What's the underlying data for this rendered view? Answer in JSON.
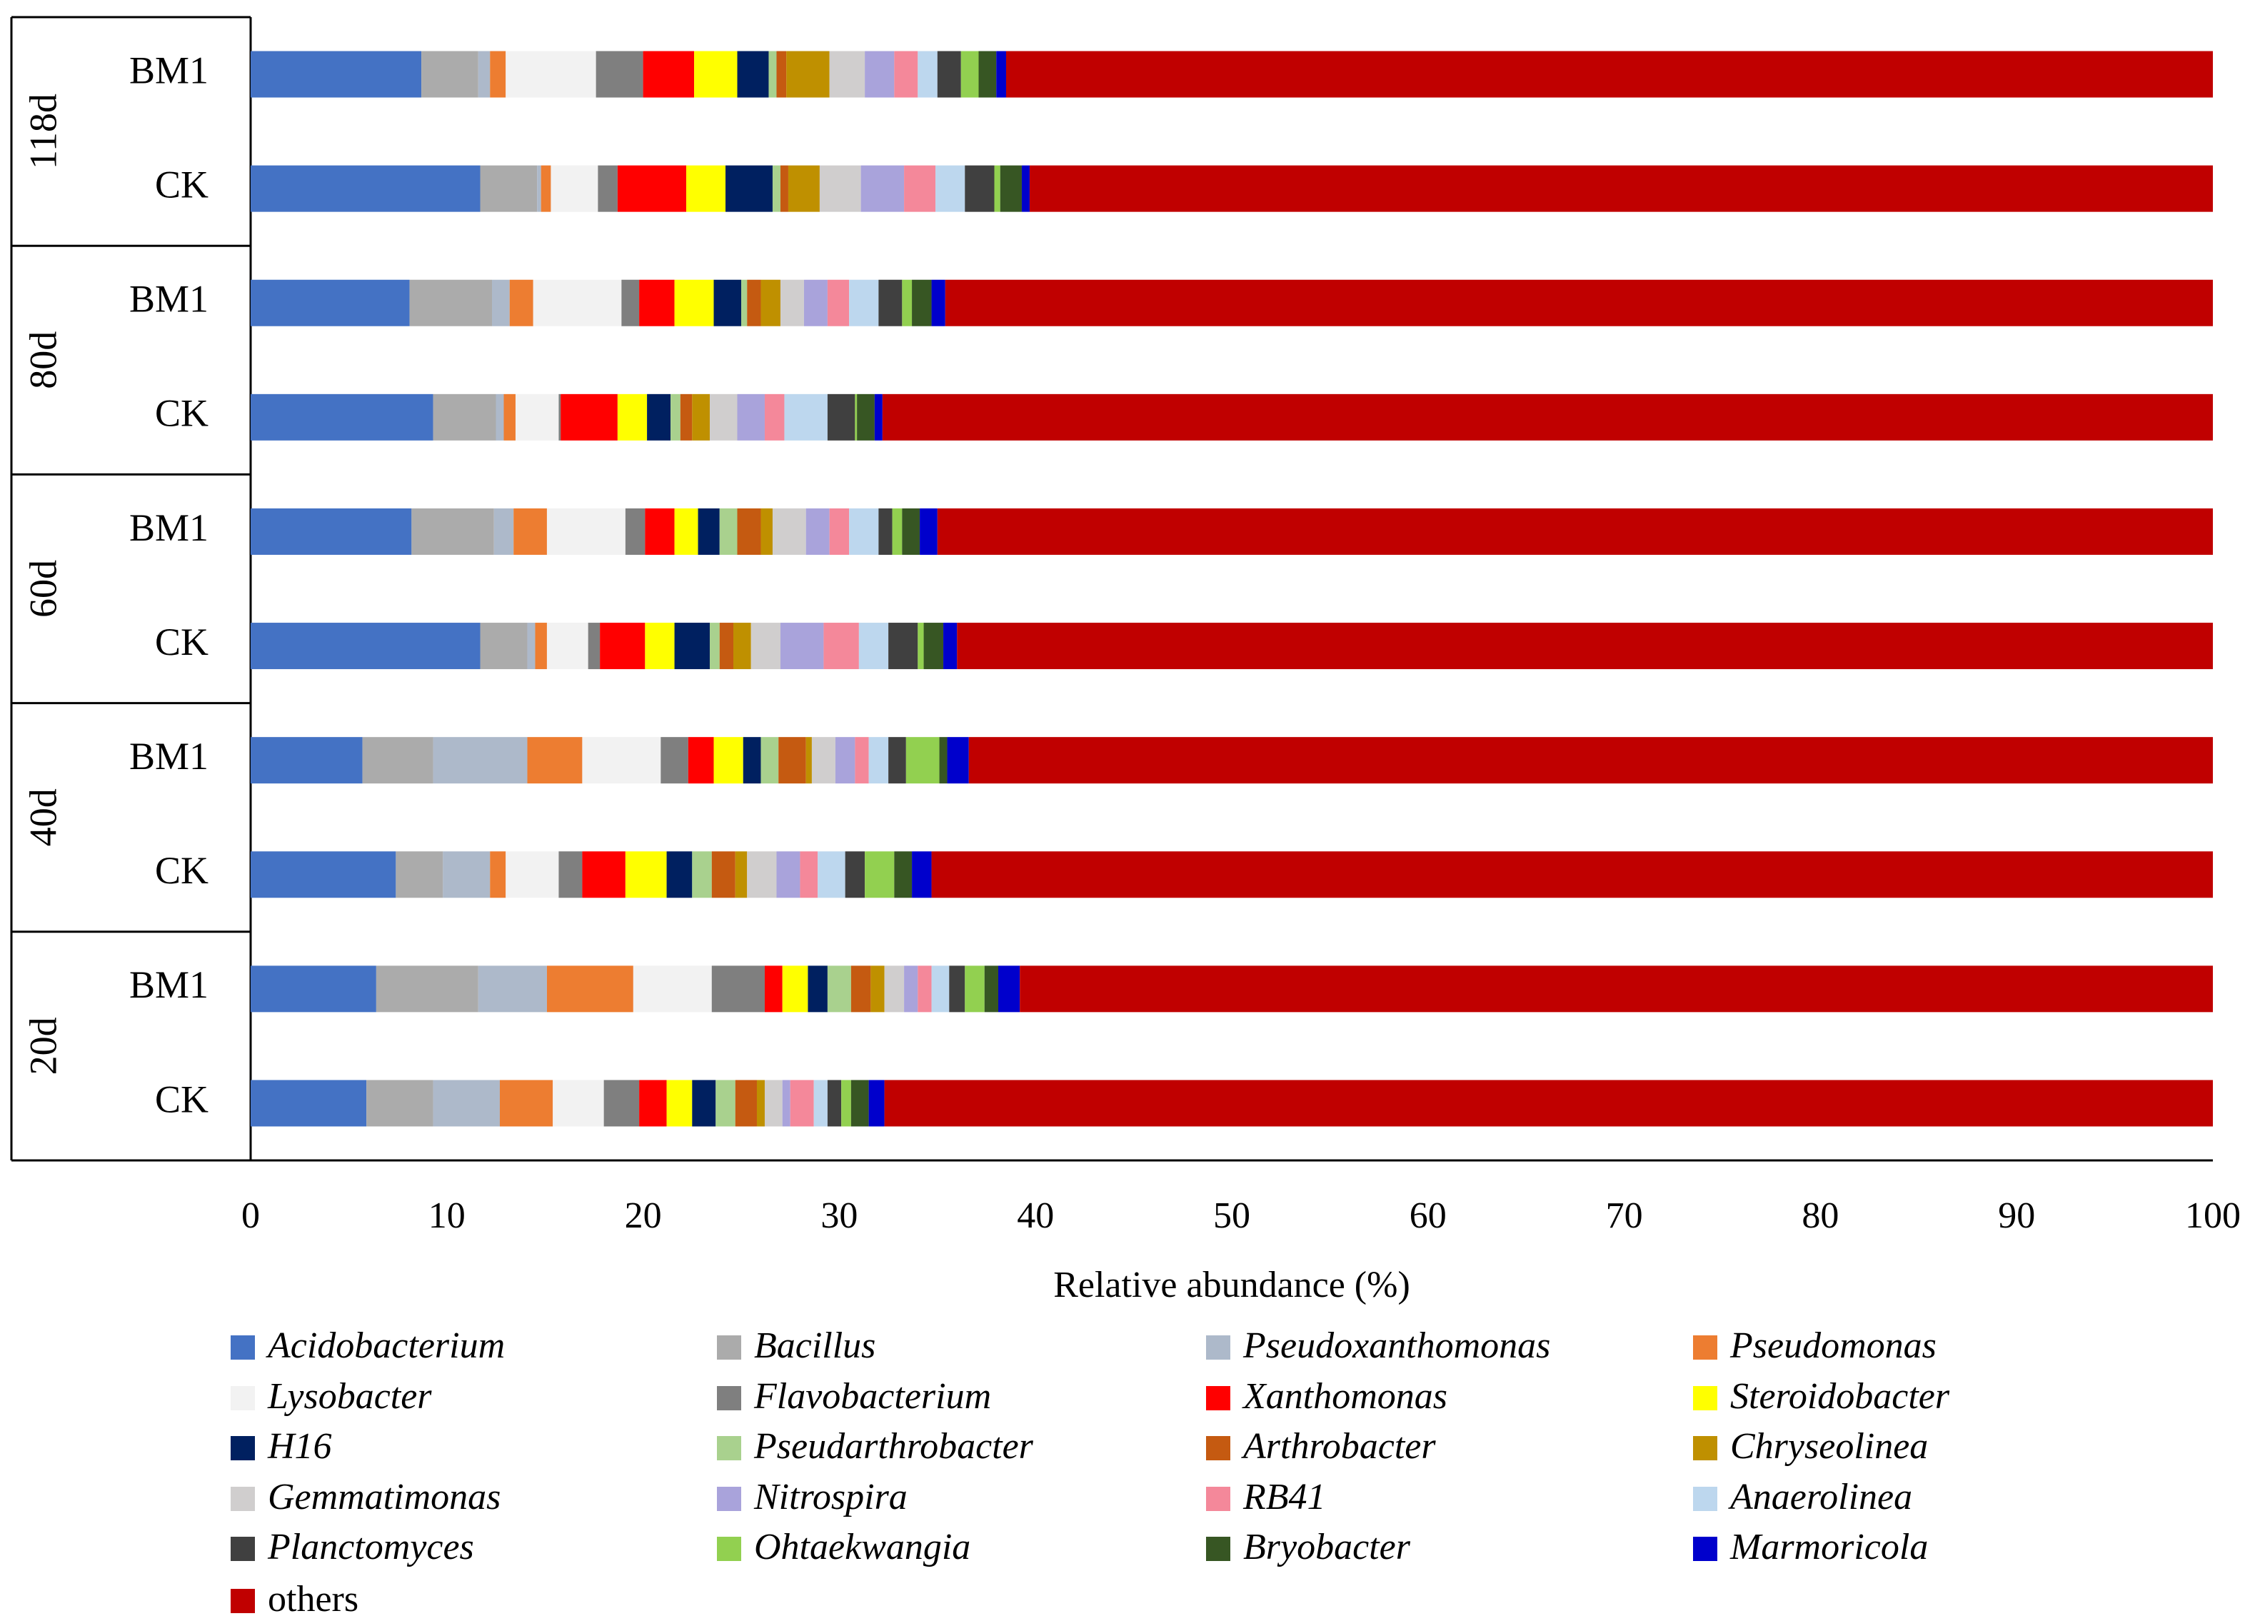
{
  "chart_data": {
    "type": "stacked_bar_horizontal",
    "x_label": "Relative abundance (%)",
    "xlim": [
      0,
      100
    ],
    "xticks": [
      0,
      10,
      20,
      30,
      40,
      50,
      60,
      70,
      80,
      90,
      100
    ],
    "grid": false,
    "legend_position": "bottom",
    "groups": [
      "118d",
      "80d",
      "60d",
      "40d",
      "20d"
    ],
    "categories": [
      "BM1",
      "CK",
      "BM1",
      "CK",
      "BM1",
      "CK",
      "BM1",
      "CK",
      "BM1",
      "CK"
    ],
    "series": [
      {
        "name": "Acidobacterium",
        "italic": true,
        "color": "#4472C4",
        "values": [
          8.7,
          11.7,
          8.1,
          9.3,
          8.2,
          11.7,
          5.7,
          7.4,
          6.4,
          5.9
        ]
      },
      {
        "name": "Bacillus",
        "italic": true,
        "color": "#ABABAB",
        "values": [
          2.9,
          2.9,
          4.2,
          3.2,
          4.2,
          2.4,
          3.6,
          2.4,
          5.2,
          3.4
        ]
      },
      {
        "name": "Pseudoxanthomonas",
        "italic": true,
        "color": "#ADB9CA",
        "values": [
          0.6,
          0.2,
          0.9,
          0.4,
          1.0,
          0.4,
          4.8,
          2.4,
          3.5,
          3.4
        ]
      },
      {
        "name": "Pseudomonas",
        "italic": true,
        "color": "#ED7D31",
        "values": [
          0.8,
          0.5,
          1.2,
          0.6,
          1.7,
          0.6,
          2.8,
          0.8,
          4.4,
          2.7
        ]
      },
      {
        "name": "Lysobacter",
        "italic": true,
        "color": "#F2F2F2",
        "values": [
          4.6,
          2.4,
          4.5,
          2.2,
          4.0,
          2.1,
          4.0,
          2.7,
          4.0,
          2.6
        ]
      },
      {
        "name": "Flavobacterium",
        "italic": true,
        "color": "#7F7F7F",
        "values": [
          2.4,
          1.0,
          0.9,
          0.1,
          1.0,
          0.6,
          1.4,
          1.2,
          2.7,
          1.8
        ]
      },
      {
        "name": "Xanthomonas",
        "italic": true,
        "color": "#FF0000",
        "values": [
          2.6,
          3.5,
          1.8,
          2.9,
          1.5,
          2.3,
          1.3,
          2.2,
          0.9,
          1.4
        ]
      },
      {
        "name": "Steroidobacter",
        "italic": true,
        "color": "#FFFF00",
        "values": [
          2.2,
          2.0,
          2.0,
          1.5,
          1.2,
          1.5,
          1.5,
          2.1,
          1.3,
          1.3
        ]
      },
      {
        "name": "H16",
        "italic": true,
        "color": "#002060",
        "values": [
          1.6,
          2.4,
          1.4,
          1.2,
          1.1,
          1.8,
          0.9,
          1.3,
          1.0,
          1.2
        ]
      },
      {
        "name": "Pseudarthrobacter",
        "italic": true,
        "color": "#A9D18E",
        "values": [
          0.4,
          0.4,
          0.3,
          0.5,
          0.9,
          0.5,
          0.9,
          1.0,
          1.2,
          1.0
        ]
      },
      {
        "name": "Arthrobacter",
        "italic": true,
        "color": "#C55A11",
        "values": [
          0.5,
          0.4,
          0.7,
          0.6,
          1.2,
          0.7,
          1.4,
          1.2,
          1.0,
          1.1
        ]
      },
      {
        "name": "Chryseolinea",
        "italic": true,
        "color": "#BF9000",
        "values": [
          2.2,
          1.6,
          1.0,
          0.9,
          0.6,
          0.9,
          0.3,
          0.6,
          0.7,
          0.4
        ]
      },
      {
        "name": "Gemmatimonas",
        "italic": true,
        "color": "#D0CECE",
        "values": [
          1.8,
          2.1,
          1.2,
          1.4,
          1.7,
          1.5,
          1.2,
          1.5,
          1.0,
          0.9
        ]
      },
      {
        "name": "Nitrospira",
        "italic": true,
        "color": "#A9A3DB",
        "values": [
          1.5,
          2.2,
          1.2,
          1.4,
          1.2,
          2.2,
          1.0,
          1.2,
          0.7,
          0.4
        ]
      },
      {
        "name": "RB41",
        "italic": true,
        "color": "#F4889A",
        "values": [
          1.2,
          1.6,
          1.1,
          1.0,
          1.0,
          1.8,
          0.7,
          0.9,
          0.7,
          1.2
        ]
      },
      {
        "name": "Anaerolinea",
        "italic": true,
        "color": "#BDD7EE",
        "values": [
          1.0,
          1.5,
          1.5,
          2.2,
          1.5,
          1.5,
          1.0,
          1.4,
          0.9,
          0.7
        ]
      },
      {
        "name": "Planctomyces",
        "italic": true,
        "color": "#404040",
        "values": [
          1.2,
          1.5,
          1.2,
          1.4,
          0.7,
          1.5,
          0.9,
          1.0,
          0.8,
          0.7
        ]
      },
      {
        "name": "Ohtaekwangia",
        "italic": true,
        "color": "#92D050",
        "values": [
          0.9,
          0.3,
          0.5,
          0.1,
          0.5,
          0.3,
          1.7,
          1.5,
          1.0,
          0.5
        ]
      },
      {
        "name": "Bryobacter",
        "italic": true,
        "color": "#375623",
        "values": [
          0.9,
          1.1,
          1.0,
          0.9,
          0.9,
          1.0,
          0.4,
          0.9,
          0.7,
          0.9
        ]
      },
      {
        "name": "Marmoricola",
        "italic": true,
        "color": "#0000CC",
        "values": [
          0.5,
          0.4,
          0.7,
          0.4,
          0.9,
          0.7,
          1.1,
          1.0,
          1.1,
          0.8
        ]
      },
      {
        "name": "others",
        "italic": false,
        "color": "#C00000",
        "values": [
          61.5,
          60.3,
          64.6,
          67.8,
          65.0,
          64.0,
          63.4,
          65.3,
          60.8,
          67.7
        ]
      }
    ]
  }
}
